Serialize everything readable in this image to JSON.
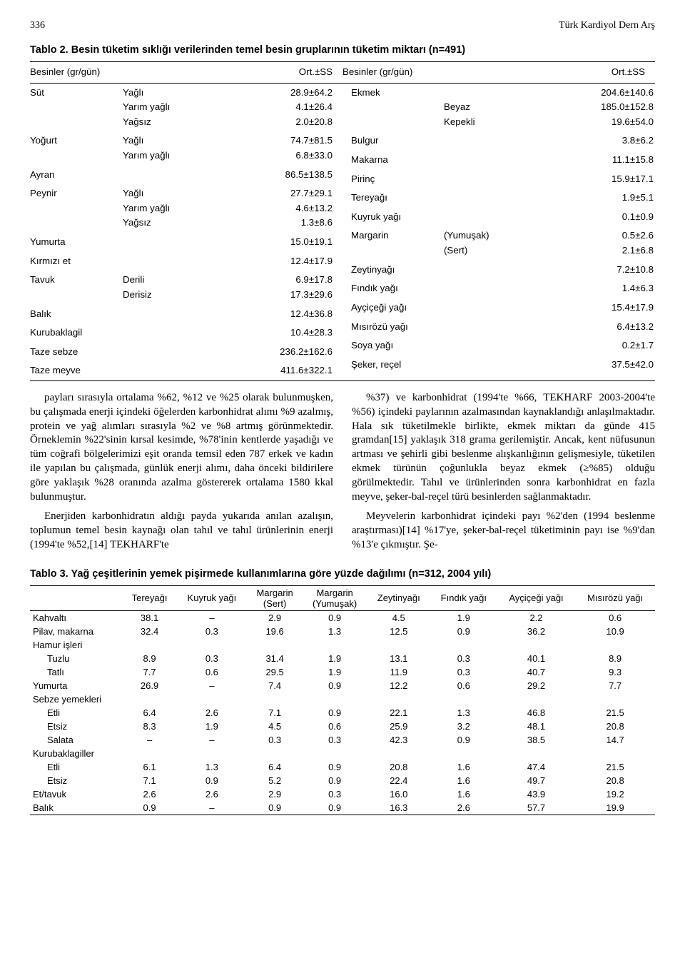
{
  "page_number": "336",
  "journal": "Türk Kardiyol Dern Arş",
  "table2": {
    "caption": "Tablo 2. Besin tüketim sıklığı verilerinden temel besin gruplarının tüketim miktarı (n=491)",
    "col_header_left": "Besinler (gr/gün)",
    "col_header_right": "Besinler (gr/gün)",
    "ort_ss": "Ort.±SS",
    "left": [
      {
        "name": "Süt",
        "rows": [
          {
            "sub": "Yağlı",
            "val": "28.9±64.2"
          },
          {
            "sub": "Yarım yağlı",
            "val": "4.1±26.4"
          },
          {
            "sub": "Yağsız",
            "val": "2.0±20.8"
          }
        ]
      },
      {
        "name": "Yoğurt",
        "rows": [
          {
            "sub": "Yağlı",
            "val": "74.7±81.5"
          },
          {
            "sub": "Yarım yağlı",
            "val": "6.8±33.0"
          }
        ]
      },
      {
        "name": "Ayran",
        "rows": [
          {
            "sub": "",
            "val": "86.5±138.5"
          }
        ]
      },
      {
        "name": "Peynir",
        "rows": [
          {
            "sub": "Yağlı",
            "val": "27.7±29.1"
          },
          {
            "sub": "Yarım yağlı",
            "val": "4.6±13.2"
          },
          {
            "sub": "Yağsız",
            "val": "1.3±8.6"
          }
        ]
      },
      {
        "name": "Yumurta",
        "rows": [
          {
            "sub": "",
            "val": "15.0±19.1"
          }
        ]
      },
      {
        "name": "Kırmızı et",
        "rows": [
          {
            "sub": "",
            "val": "12.4±17.9"
          }
        ]
      },
      {
        "name": "Tavuk",
        "rows": [
          {
            "sub": "Derili",
            "val": "6.9±17.8"
          },
          {
            "sub": "Derisiz",
            "val": "17.3±29.6"
          }
        ]
      },
      {
        "name": "Balık",
        "rows": [
          {
            "sub": "",
            "val": "12.4±36.8"
          }
        ]
      },
      {
        "name": "Kurubaklagil",
        "rows": [
          {
            "sub": "",
            "val": "10.4±28.3"
          }
        ]
      },
      {
        "name": "Taze sebze",
        "rows": [
          {
            "sub": "",
            "val": "236.2±162.6"
          }
        ]
      },
      {
        "name": "Taze meyve",
        "rows": [
          {
            "sub": "",
            "val": "411.6±322.1"
          }
        ]
      }
    ],
    "right": [
      {
        "name": "Ekmek",
        "rows": [
          {
            "sub": "",
            "val": "204.6±140.6"
          },
          {
            "sub": "Beyaz",
            "val": "185.0±152.8"
          },
          {
            "sub": "Kepekli",
            "val": "19.6±54.0"
          }
        ]
      },
      {
        "name": "Bulgur",
        "rows": [
          {
            "sub": "",
            "val": "3.8±6.2"
          }
        ]
      },
      {
        "name": "Makarna",
        "rows": [
          {
            "sub": "",
            "val": "11.1±15.8"
          }
        ]
      },
      {
        "name": "Pirinç",
        "rows": [
          {
            "sub": "",
            "val": "15.9±17.1"
          }
        ]
      },
      {
        "name": "Tereyağı",
        "rows": [
          {
            "sub": "",
            "val": "1.9±5.1"
          }
        ]
      },
      {
        "name": "Kuyruk yağı",
        "rows": [
          {
            "sub": "",
            "val": "0.1±0.9"
          }
        ]
      },
      {
        "name": "Margarin",
        "rows": [
          {
            "sub": "(Yumuşak)",
            "val": "0.5±2.6"
          },
          {
            "sub": "(Sert)",
            "val": "2.1±6.8"
          }
        ]
      },
      {
        "name": "Zeytinyağı",
        "rows": [
          {
            "sub": "",
            "val": "7.2±10.8"
          }
        ]
      },
      {
        "name": "Fındık yağı",
        "rows": [
          {
            "sub": "",
            "val": "1.4±6.3"
          }
        ]
      },
      {
        "name": "Ayçiçeği yağı",
        "rows": [
          {
            "sub": "",
            "val": "15.4±17.9"
          }
        ]
      },
      {
        "name": "Mısırözü yağı",
        "rows": [
          {
            "sub": "",
            "val": "6.4±13.2"
          }
        ]
      },
      {
        "name": "Soya yağı",
        "rows": [
          {
            "sub": "",
            "val": "0.2±1.7"
          }
        ]
      },
      {
        "name": "Şeker, reçel",
        "rows": [
          {
            "sub": "",
            "val": "37.5±42.0"
          }
        ]
      }
    ]
  },
  "body_text": {
    "left": [
      "payları sırasıyla ortalama %62, %12 ve %25 olarak bulunmuşken, bu çalışmada enerji içindeki öğelerden karbonhidrat alımı %9 azalmış, protein ve yağ alımları sırasıyla %2 ve %8 artmış görünmektedir. Örneklemin %22'sinin kırsal kesimde, %78'inin kentlerde yaşadığı ve tüm coğrafi bölgelerimizi eşit oranda temsil eden 787 erkek ve kadın ile yapılan bu çalışmada, günlük enerji alımı, daha önceki bildirilere göre yaklaşık %28 oranında azalma göstererek ortalama 1580 kkal bulunmuştur.",
      "Enerjiden karbonhidratın aldığı payda yukarıda anılan azalışın, toplumun temel besin kaynağı olan tahıl ve tahıl ürünlerinin enerji (1994'te %52,[14] TEKHARF'te"
    ],
    "right": [
      "%37) ve karbonhidrat (1994'te %66, TEKHARF 2003-2004'te %56) içindeki paylarının azalmasından kaynaklandığı anlaşılmaktadır. Hala sık tüketilmekle birlikte, ekmek miktarı da günde 415 gramdan[15] yaklaşık 318 grama gerilemiştir. Ancak, kent nüfusunun artması ve şehirli gibi beslenme alışkanlığının gelişmesiyle, tüketilen ekmek türünün çoğunlukla beyaz ekmek (≥%85) olduğu görülmektedir. Tahıl ve ürünlerinden sonra karbonhidrat en fazla meyve, şeker-bal-reçel türü besinlerden sağlanmaktadır.",
      "Meyvelerin karbonhidrat içindeki payı %2'den (1994 beslenme araştırması)[14] %17'ye, şeker-bal-reçel tüketiminin payı ise %9'dan %13'e çıkmıştır. Şe-"
    ]
  },
  "table3": {
    "caption": "Tablo 3. Yağ çeşitlerinin yemek pişirmede kullanımlarına göre yüzde dağılımı (n=312, 2004 yılı)",
    "columns": [
      "Tereyağı",
      "Kuyruk yağı",
      "Margarin\n(Sert)",
      "Margarin\n(Yumuşak)",
      "Zeytinyağı",
      "Fındık yağı",
      "Ayçiçeği yağı",
      "Mısırözü yağı"
    ],
    "rows": [
      {
        "label": "Kahvaltı",
        "cells": [
          "38.1",
          "–",
          "2.9",
          "0.9",
          "4.5",
          "1.9",
          "2.2",
          "0.6"
        ]
      },
      {
        "label": "Pilav, makarna",
        "cells": [
          "32.4",
          "0.3",
          "19.6",
          "1.3",
          "12.5",
          "0.9",
          "36.2",
          "10.9"
        ]
      },
      {
        "label": "Hamur işleri",
        "cells": [
          "",
          "",
          "",
          "",
          "",
          "",
          "",
          ""
        ]
      },
      {
        "label": "Tuzlu",
        "indent": true,
        "cells": [
          "8.9",
          "0.3",
          "31.4",
          "1.9",
          "13.1",
          "0.3",
          "40.1",
          "8.9"
        ]
      },
      {
        "label": "Tatlı",
        "indent": true,
        "cells": [
          "7.7",
          "0.6",
          "29.5",
          "1.9",
          "11.9",
          "0.3",
          "40.7",
          "9.3"
        ]
      },
      {
        "label": "Yumurta",
        "cells": [
          "26.9",
          "–",
          "7.4",
          "0.9",
          "12.2",
          "0.6",
          "29.2",
          "7.7"
        ]
      },
      {
        "label": "Sebze yemekleri",
        "cells": [
          "",
          "",
          "",
          "",
          "",
          "",
          "",
          ""
        ]
      },
      {
        "label": "Etli",
        "indent": true,
        "cells": [
          "6.4",
          "2.6",
          "7.1",
          "0.9",
          "22.1",
          "1.3",
          "46.8",
          "21.5"
        ]
      },
      {
        "label": "Etsiz",
        "indent": true,
        "cells": [
          "8.3",
          "1.9",
          "4.5",
          "0.6",
          "25.9",
          "3.2",
          "48.1",
          "20.8"
        ]
      },
      {
        "label": "Salata",
        "indent": true,
        "cells": [
          "–",
          "–",
          "0.3",
          "0.3",
          "42.3",
          "0.9",
          "38.5",
          "14.7"
        ]
      },
      {
        "label": "Kurubaklagiller",
        "cells": [
          "",
          "",
          "",
          "",
          "",
          "",
          "",
          ""
        ]
      },
      {
        "label": "Etli",
        "indent": true,
        "cells": [
          "6.1",
          "1.3",
          "6.4",
          "0.9",
          "20.8",
          "1.6",
          "47.4",
          "21.5"
        ]
      },
      {
        "label": "Etsiz",
        "indent": true,
        "cells": [
          "7.1",
          "0.9",
          "5.2",
          "0.9",
          "22.4",
          "1.6",
          "49.7",
          "20.8"
        ]
      },
      {
        "label": "Et/tavuk",
        "cells": [
          "2.6",
          "2.6",
          "2.9",
          "0.3",
          "16.0",
          "1.6",
          "43.9",
          "19.2"
        ]
      },
      {
        "label": "Balık",
        "cells": [
          "0.9",
          "–",
          "0.9",
          "0.9",
          "16.3",
          "2.6",
          "57.7",
          "19.9"
        ]
      }
    ]
  }
}
